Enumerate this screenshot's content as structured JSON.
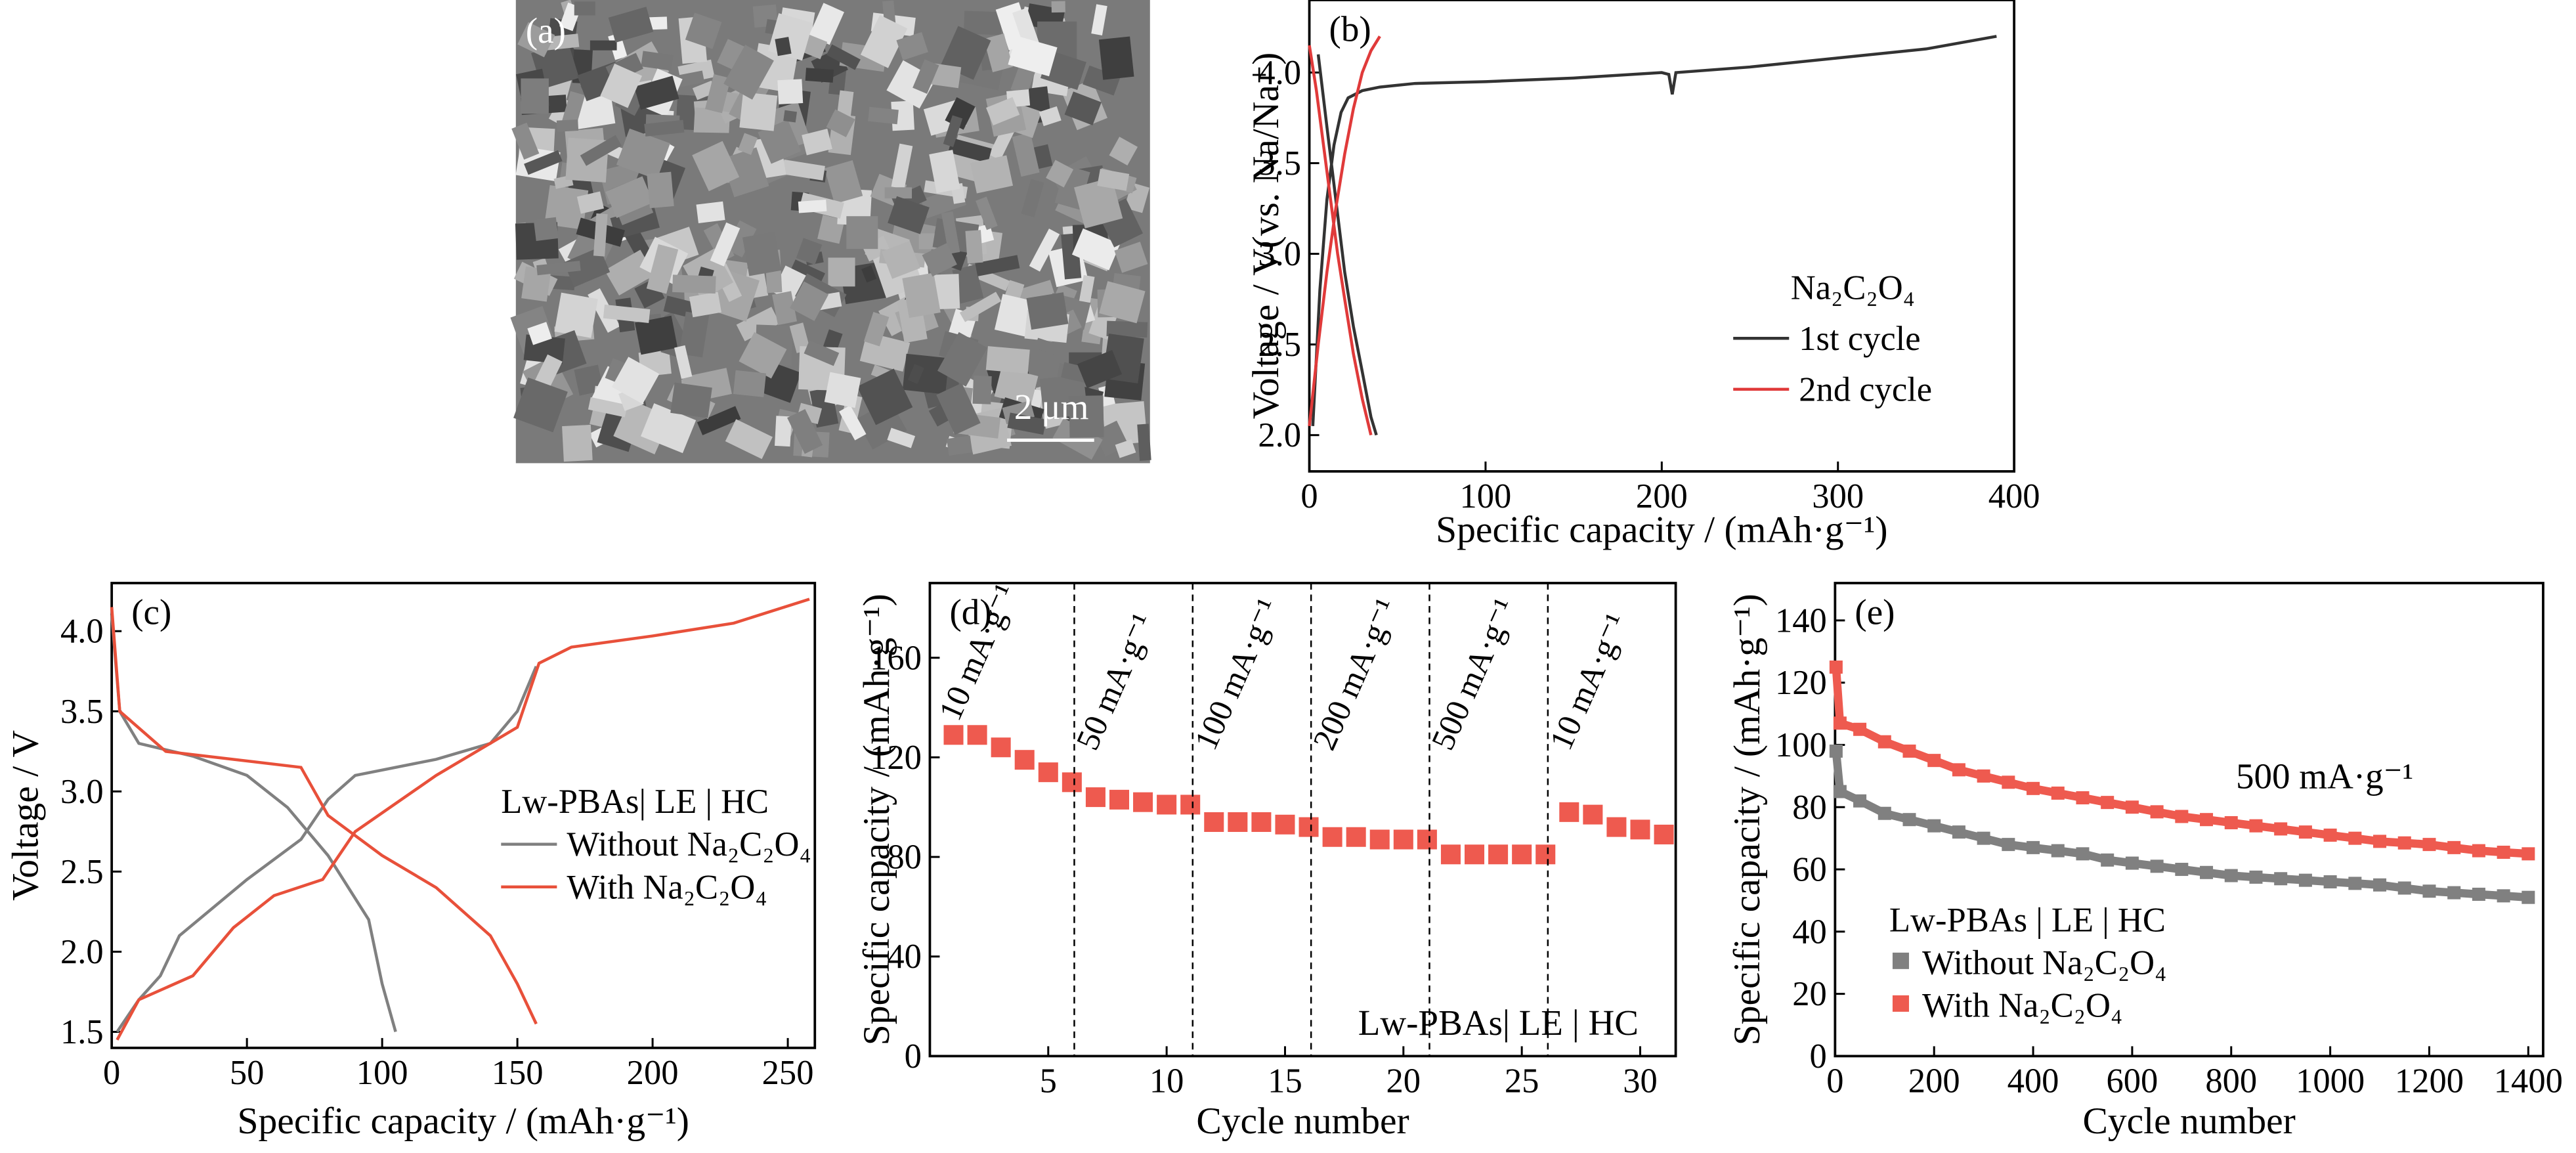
{
  "image_panel": {
    "panel_label": "(a)",
    "scale_bar": "2 μm"
  },
  "chart_data": [
    {
      "type": "line",
      "panel_label": "(b)",
      "xlabel": "Specific  capacity / (mAh·g⁻¹)",
      "ylabel": "Voltage / V(vs. Na/Na⁺)",
      "xlim": [
        0,
        400
      ],
      "ylim": [
        1.8,
        4.4
      ],
      "xticks": [
        0,
        100,
        200,
        300,
        400
      ],
      "yticks": [
        {
          "value": 2,
          "label": "2.0"
        },
        2.5,
        {
          "value": 3,
          "label": "3.0"
        },
        3.5,
        {
          "value": 4,
          "label": "4.0"
        }
      ],
      "legend_title": "Na₂C₂O₄",
      "legend": "right",
      "series": [
        {
          "name": "1st cycle",
          "color": "#333333",
          "x": [
            2,
            6,
            10,
            14,
            18,
            22,
            30,
            40,
            60,
            100,
            150,
            200,
            204,
            206,
            208,
            250,
            300,
            350,
            390,
            null,
            5,
            10,
            15,
            20,
            25,
            30,
            35,
            38
          ],
          "values": [
            2.05,
            2.8,
            3.3,
            3.6,
            3.78,
            3.86,
            3.9,
            3.92,
            3.94,
            3.95,
            3.97,
            4.0,
            3.99,
            3.88,
            4.0,
            4.03,
            4.08,
            4.13,
            4.2,
            null,
            4.1,
            3.7,
            3.3,
            2.9,
            2.6,
            2.35,
            2.1,
            2.0
          ]
        },
        {
          "name": "2nd cycle",
          "color": "#e03a3a",
          "x": [
            0,
            5,
            10,
            15,
            20,
            25,
            30,
            35,
            40,
            null,
            0,
            4,
            8,
            12,
            16,
            20,
            25,
            30,
            35
          ],
          "values": [
            2.05,
            2.5,
            2.9,
            3.25,
            3.55,
            3.8,
            4.0,
            4.12,
            4.2,
            null,
            4.15,
            3.9,
            3.6,
            3.3,
            3.0,
            2.75,
            2.45,
            2.2,
            2.0
          ]
        }
      ]
    },
    {
      "type": "line",
      "panel_label": "(c)",
      "xlabel": "Specific capacity / (mAh·g⁻¹)",
      "ylabel": "Voltage / V",
      "xlim": [
        0,
        260
      ],
      "ylim": [
        1.4,
        4.3
      ],
      "xticks": [
        0,
        50,
        100,
        150,
        200,
        250
      ],
      "yticks": [
        1.5,
        {
          "value": 2,
          "label": "2.0"
        },
        2.5,
        {
          "value": 3,
          "label": "3.0"
        },
        3.5,
        {
          "value": 4,
          "label": "4.0"
        }
      ],
      "legend_title": "Lw-PBAs| LE | HC",
      "legend": "right",
      "series": [
        {
          "name": "Without Na₂C₂O₄",
          "color": "#808080",
          "x": [
            2,
            10,
            18,
            25,
            50,
            70,
            80,
            90,
            120,
            140,
            150,
            157,
            null,
            0,
            3,
            10,
            30,
            50,
            65,
            80,
            95,
            100,
            105
          ],
          "values": [
            1.5,
            1.7,
            1.85,
            2.1,
            2.45,
            2.7,
            2.95,
            3.1,
            3.2,
            3.3,
            3.5,
            3.78,
            null,
            4.1,
            3.5,
            3.3,
            3.22,
            3.1,
            2.9,
            2.6,
            2.2,
            1.8,
            1.5
          ]
        },
        {
          "name": "With Na₂C₂O₄",
          "color": "#e8503a",
          "x": [
            2,
            10,
            30,
            45,
            60,
            78,
            90,
            120,
            150,
            158,
            170,
            200,
            230,
            258,
            null,
            0,
            3,
            20,
            70,
            80,
            100,
            120,
            140,
            150,
            157
          ],
          "values": [
            1.45,
            1.7,
            1.85,
            2.15,
            2.35,
            2.45,
            2.75,
            3.1,
            3.4,
            3.8,
            3.9,
            3.97,
            4.05,
            4.2,
            null,
            4.15,
            3.5,
            3.25,
            3.15,
            2.85,
            2.6,
            2.4,
            2.1,
            1.8,
            1.55
          ]
        }
      ]
    },
    {
      "type": "scatter",
      "panel_label": "(d)",
      "xlabel": "Cycle number",
      "ylabel": "Specific capacity / (mAh·g⁻¹)",
      "xlim": [
        0,
        31.5
      ],
      "ylim": [
        0,
        190
      ],
      "xticks": [
        5,
        10,
        15,
        20,
        25,
        30
      ],
      "yticks": [
        0,
        40,
        80,
        120,
        160
      ],
      "color": "#ee5a4f",
      "marker": "square",
      "x": [
        1,
        2,
        3,
        4,
        5,
        6,
        7,
        8,
        9,
        10,
        11,
        12,
        13,
        14,
        15,
        16,
        17,
        18,
        19,
        20,
        21,
        22,
        23,
        24,
        25,
        26,
        27,
        28,
        29,
        30,
        31
      ],
      "values": [
        129,
        129,
        124,
        119,
        114,
        110,
        104,
        103,
        102,
        101,
        101,
        94,
        94,
        94,
        93,
        92,
        88,
        88,
        87,
        87,
        87,
        81,
        81,
        81,
        81,
        81,
        98,
        97,
        92,
        91,
        89
      ],
      "dividers": [
        6.1,
        11.1,
        16.1,
        21.1,
        26.1
      ],
      "rate_labels": [
        "10 mA·g⁻¹",
        "50 mA·g⁻¹",
        "100 mA·g⁻¹",
        "200 mA·g⁻¹",
        "500 mA·g⁻¹",
        "10 mA·g⁻¹"
      ],
      "annotation": "Lw-PBAs| LE | HC"
    },
    {
      "type": "line",
      "panel_label": "(e)",
      "xlabel": "Cycle number",
      "ylabel": "Specific capacity / (mAh·g⁻¹)",
      "xlim": [
        0,
        1430
      ],
      "ylim": [
        0,
        152
      ],
      "xticks": [
        0,
        200,
        400,
        600,
        800,
        1000,
        1200,
        1400
      ],
      "yticks": [
        0,
        20,
        40,
        60,
        80,
        100,
        120,
        140
      ],
      "marker": "square",
      "legend_title": "Lw-PBAs | LE | HC",
      "legend": "lower left",
      "annotation": "500 mA·g⁻¹",
      "series": [
        {
          "name": "Without Na₂C₂O₄",
          "color": "#808080",
          "x": [
            2,
            10,
            50,
            100,
            150,
            200,
            250,
            300,
            350,
            400,
            450,
            500,
            550,
            600,
            650,
            700,
            750,
            800,
            850,
            900,
            950,
            1000,
            1050,
            1100,
            1150,
            1200,
            1250,
            1300,
            1350,
            1400
          ],
          "values": [
            98,
            85,
            82,
            78,
            76,
            74,
            72,
            70,
            68,
            67,
            66,
            65,
            63,
            62,
            61,
            60,
            59,
            58,
            57.5,
            57,
            56.5,
            56,
            55.5,
            55,
            54,
            53,
            52.5,
            52,
            51.5,
            51
          ]
        },
        {
          "name": "With Na₂C₂O₄",
          "color": "#ee5a4f",
          "x": [
            2,
            10,
            50,
            100,
            150,
            200,
            250,
            300,
            350,
            400,
            450,
            500,
            550,
            600,
            650,
            700,
            750,
            800,
            850,
            900,
            950,
            1000,
            1050,
            1100,
            1150,
            1200,
            1250,
            1300,
            1350,
            1400
          ],
          "values": [
            125,
            107,
            105,
            101,
            98,
            95,
            92,
            90,
            88,
            86,
            84.5,
            83,
            81.5,
            80,
            78.5,
            77,
            76,
            75,
            74,
            73,
            72,
            71,
            70,
            69,
            68.5,
            68,
            67,
            66,
            65.5,
            65
          ]
        }
      ]
    }
  ]
}
